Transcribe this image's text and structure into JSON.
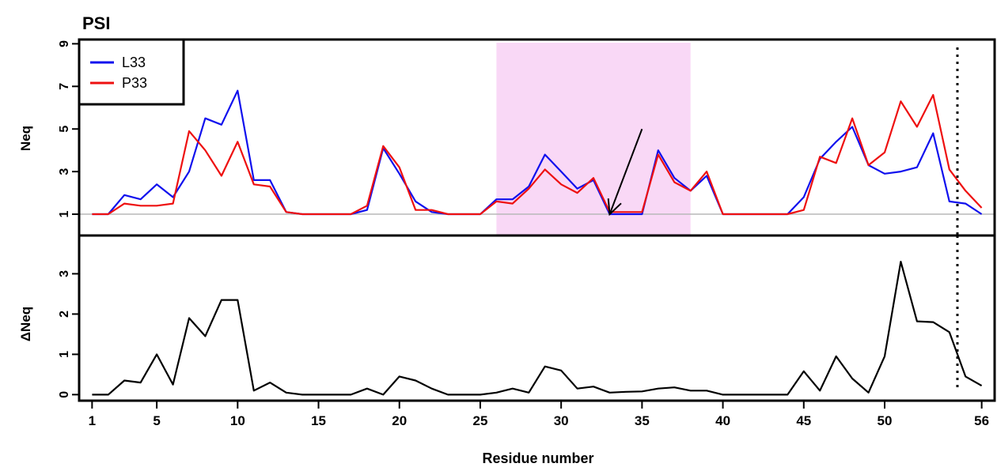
{
  "chart_data": [
    {
      "type": "line",
      "title": "PSI",
      "xlabel": "Residue number",
      "ylabel": "Neq",
      "x": [
        1,
        2,
        3,
        4,
        5,
        6,
        7,
        8,
        9,
        10,
        11,
        12,
        13,
        14,
        15,
        16,
        17,
        18,
        19,
        20,
        21,
        22,
        23,
        24,
        25,
        26,
        27,
        28,
        29,
        30,
        31,
        32,
        33,
        34,
        35,
        36,
        37,
        38,
        39,
        40,
        41,
        42,
        43,
        44,
        45,
        46,
        47,
        48,
        49,
        50,
        51,
        52,
        53,
        54,
        55,
        56
      ],
      "xlim": [
        0.2,
        56.8
      ],
      "ylim": [
        0,
        9.2
      ],
      "yticks": [
        1,
        3,
        5,
        7,
        9
      ],
      "ytick_labels": [
        "1",
        "3",
        "5",
        "7",
        "9"
      ],
      "baseline": 1,
      "highlight_region": [
        26,
        38
      ],
      "highlight_color": "#f9d8f6",
      "vline_x": 54.5,
      "arrow": {
        "from": [
          35,
          5
        ],
        "to": [
          33,
          1
        ]
      },
      "legend": {
        "position": "top-left",
        "entries": [
          "L33",
          "P33"
        ]
      },
      "series": [
        {
          "name": "L33",
          "color": "#1010ee",
          "values": [
            1.0,
            1.0,
            1.9,
            1.7,
            2.4,
            1.8,
            3.0,
            5.5,
            5.2,
            6.8,
            2.6,
            2.6,
            1.1,
            1.0,
            1.0,
            1.0,
            1.0,
            1.2,
            4.1,
            2.9,
            1.6,
            1.1,
            1.0,
            1.0,
            1.0,
            1.7,
            1.7,
            2.3,
            3.8,
            3.0,
            2.2,
            2.6,
            1.0,
            1.0,
            1.0,
            4.0,
            2.7,
            2.1,
            2.8,
            1.0,
            1.0,
            1.0,
            1.0,
            1.0,
            1.8,
            3.6,
            4.4,
            5.1,
            3.3,
            2.9,
            3.0,
            3.2,
            4.8,
            1.6,
            1.5,
            1.0
          ]
        },
        {
          "name": "P33",
          "color": "#ee1010",
          "values": [
            1.0,
            1.0,
            1.5,
            1.4,
            1.4,
            1.5,
            4.9,
            4.0,
            2.8,
            4.4,
            2.4,
            2.3,
            1.1,
            1.0,
            1.0,
            1.0,
            1.0,
            1.4,
            4.2,
            3.2,
            1.2,
            1.2,
            1.0,
            1.0,
            1.0,
            1.6,
            1.5,
            2.2,
            3.1,
            2.4,
            2.0,
            2.7,
            1.1,
            1.1,
            1.1,
            3.8,
            2.5,
            2.1,
            3.0,
            1.0,
            1.0,
            1.0,
            1.0,
            1.0,
            1.2,
            3.7,
            3.4,
            5.5,
            3.3,
            3.9,
            6.3,
            5.1,
            6.6,
            3.1,
            2.1,
            1.3
          ]
        }
      ]
    },
    {
      "type": "line",
      "xlabel": "Residue number",
      "ylabel": "ΔNeq",
      "x": [
        1,
        2,
        3,
        4,
        5,
        6,
        7,
        8,
        9,
        10,
        11,
        12,
        13,
        14,
        15,
        16,
        17,
        18,
        19,
        20,
        21,
        22,
        23,
        24,
        25,
        26,
        27,
        28,
        29,
        30,
        31,
        32,
        33,
        34,
        35,
        36,
        37,
        38,
        39,
        40,
        41,
        42,
        43,
        44,
        45,
        46,
        47,
        48,
        49,
        50,
        51,
        52,
        53,
        54,
        55,
        56
      ],
      "xlim": [
        0.2,
        56.8
      ],
      "ylim": [
        -0.15,
        3.95
      ],
      "yticks": [
        0,
        1,
        2,
        3
      ],
      "ytick_labels": [
        "0",
        "1",
        "2",
        "3"
      ],
      "xticks": [
        1,
        5,
        10,
        15,
        20,
        25,
        30,
        35,
        40,
        45,
        50,
        56
      ],
      "xtick_labels": [
        "1",
        "5",
        "10",
        "15",
        "20",
        "25",
        "30",
        "35",
        "40",
        "45",
        "50",
        "56"
      ],
      "vline_x": 54.5,
      "series": [
        {
          "color": "#000000",
          "values": [
            0.0,
            0.0,
            0.35,
            0.3,
            1.0,
            0.25,
            1.9,
            1.45,
            2.35,
            2.35,
            0.1,
            0.3,
            0.05,
            0.0,
            0.0,
            0.0,
            0.0,
            0.15,
            0.0,
            0.45,
            0.35,
            0.15,
            0.0,
            0.0,
            0.0,
            0.05,
            0.15,
            0.05,
            0.7,
            0.6,
            0.15,
            0.2,
            0.05,
            0.07,
            0.08,
            0.15,
            0.18,
            0.1,
            0.1,
            0.0,
            0.0,
            0.0,
            0.0,
            0.0,
            0.58,
            0.1,
            0.95,
            0.4,
            0.05,
            0.95,
            3.3,
            1.82,
            1.8,
            1.55,
            0.45,
            0.22
          ]
        }
      ]
    }
  ]
}
